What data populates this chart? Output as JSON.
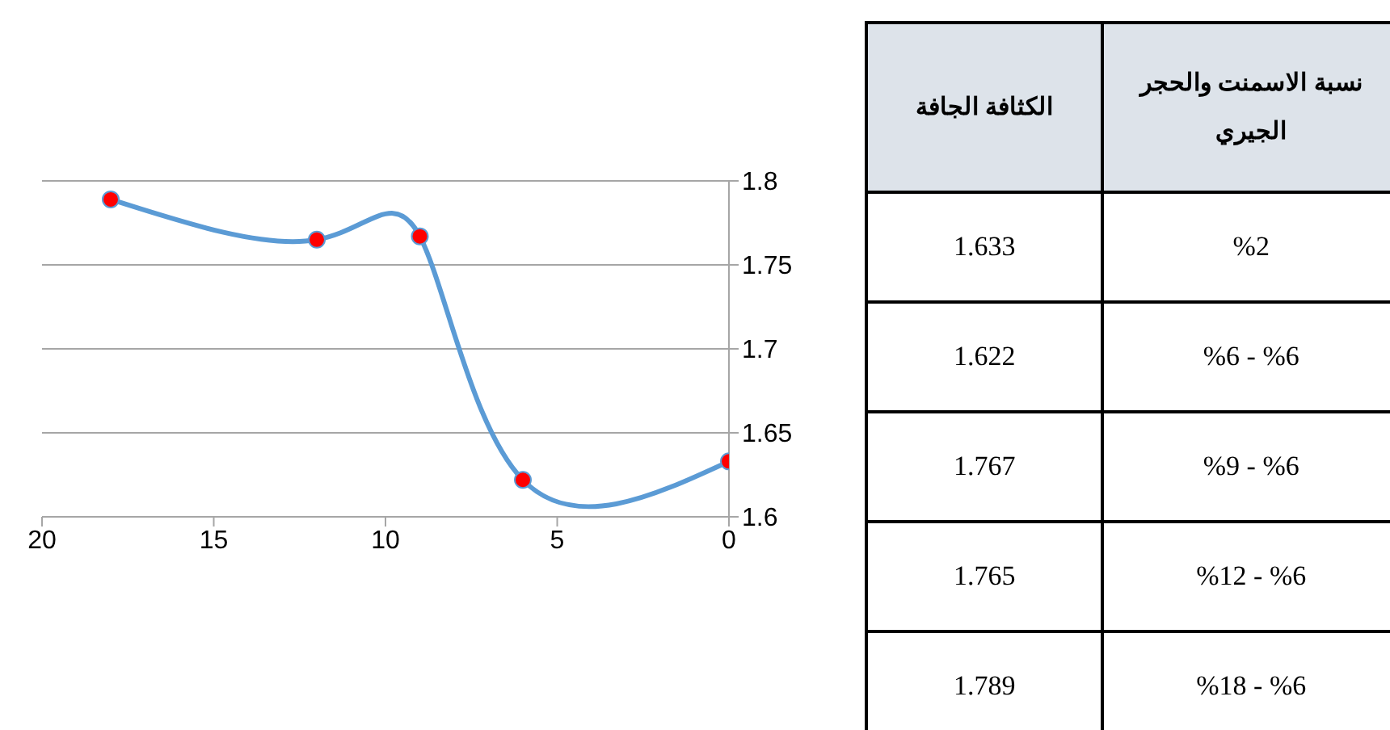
{
  "chart_data": [
    {
      "type": "line",
      "x": [
        0,
        6,
        9,
        12,
        18
      ],
      "series": [
        {
          "color": "#5b9bd5",
          "colors": [
            "#ff0000",
            "#ff0000",
            "#ff0000",
            "#ff0000",
            "#ff0000"
          ],
          "values": [
            1.633,
            1.622,
            1.767,
            1.765,
            1.789
          ]
        }
      ],
      "xlim": [
        20,
        0
      ],
      "xticks": [
        20,
        15,
        10,
        5,
        0
      ],
      "ylim": [
        1.6,
        1.8
      ],
      "yticks": [
        1.6,
        1.65,
        1.7,
        1.75,
        1.8
      ],
      "grid": "y",
      "marker": "circle",
      "line_style": "solid"
    },
    {
      "type": "other",
      "annotations": [
        "الكثافة الجافة",
        "نسبة الاسمنت والحجر الجيري"
      ],
      "categories": [
        "%2",
        "%6 - %6",
        "%9 - %6",
        "%12 - %6",
        "%18 - %6"
      ],
      "values": [
        1.633,
        1.622,
        1.767,
        1.765,
        1.789
      ],
      "data_labels": true
    }
  ]
}
